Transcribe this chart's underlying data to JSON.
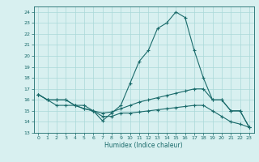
{
  "xlabel": "Humidex (Indice chaleur)",
  "x_values": [
    0,
    1,
    2,
    3,
    4,
    5,
    6,
    7,
    8,
    9,
    10,
    11,
    12,
    13,
    14,
    15,
    16,
    17,
    18,
    19,
    20,
    21,
    22,
    23
  ],
  "line1": [
    16.5,
    16.0,
    16.0,
    16.0,
    15.5,
    15.5,
    15.0,
    14.1,
    14.8,
    15.5,
    17.5,
    19.5,
    20.5,
    22.5,
    23.0,
    24.0,
    23.5,
    20.5,
    18.0,
    16.0,
    16.0,
    15.0,
    15.0,
    13.5
  ],
  "line2": [
    16.5,
    16.0,
    16.0,
    16.0,
    15.5,
    15.2,
    15.0,
    14.8,
    14.9,
    15.2,
    15.5,
    15.8,
    16.0,
    16.2,
    16.4,
    16.6,
    16.8,
    17.0,
    17.0,
    16.0,
    16.0,
    15.0,
    15.0,
    13.5
  ],
  "line3": [
    16.5,
    16.0,
    15.5,
    15.5,
    15.5,
    15.2,
    15.0,
    14.5,
    14.5,
    14.8,
    14.8,
    14.9,
    15.0,
    15.1,
    15.2,
    15.3,
    15.4,
    15.5,
    15.5,
    15.0,
    14.5,
    14.0,
    13.8,
    13.5
  ],
  "line_color": "#1a6b6b",
  "bg_color": "#d8f0f0",
  "grid_color": "#aad8d8",
  "ylim": [
    13,
    24.5
  ],
  "xlim": [
    -0.5,
    23.5
  ],
  "yticks": [
    13,
    14,
    15,
    16,
    17,
    18,
    19,
    20,
    21,
    22,
    23,
    24
  ],
  "xticks": [
    0,
    1,
    2,
    3,
    4,
    5,
    6,
    7,
    8,
    9,
    10,
    11,
    12,
    13,
    14,
    15,
    16,
    17,
    18,
    19,
    20,
    21,
    22,
    23
  ]
}
